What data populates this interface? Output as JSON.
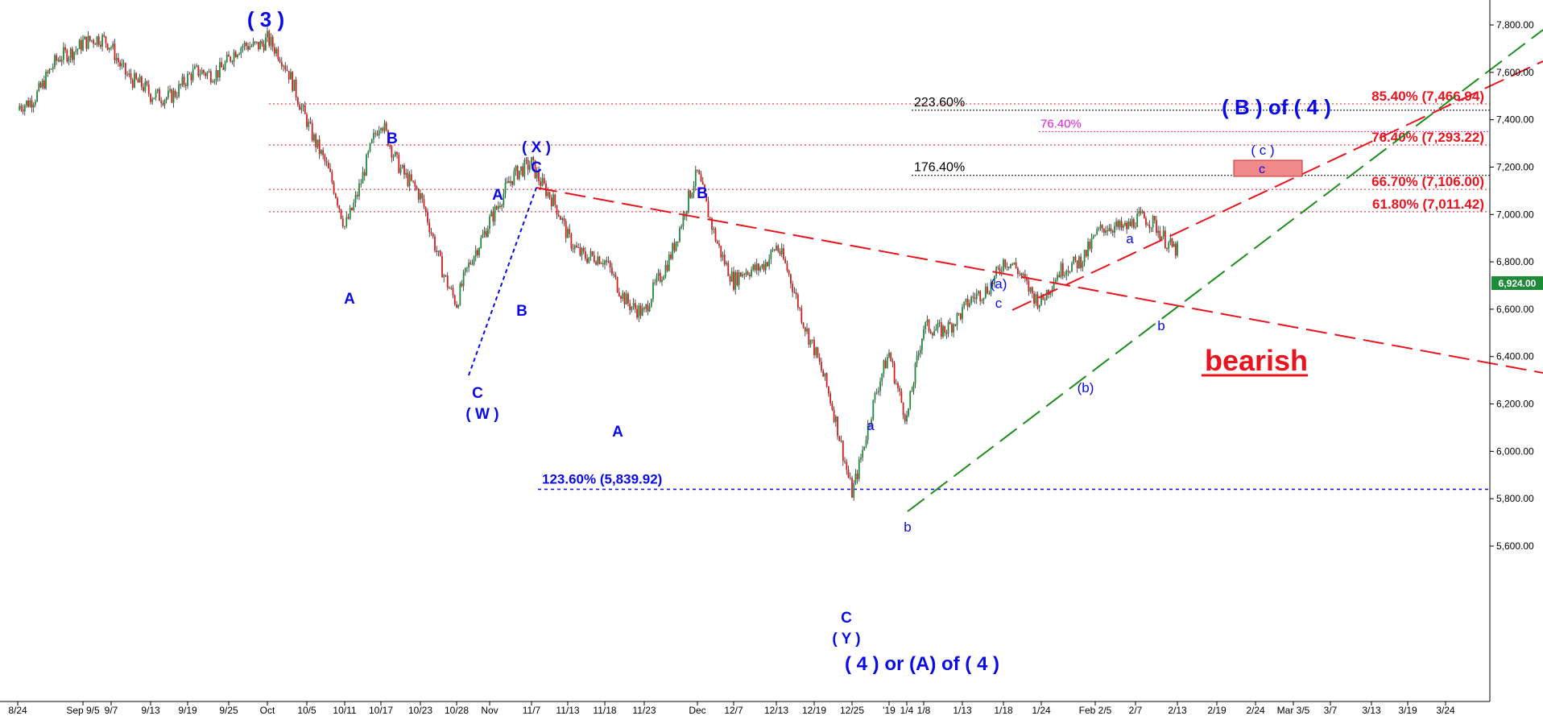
{
  "chart_data": {
    "type": "candlestick",
    "price_axis": {
      "ticks": [
        "7,800.00",
        "7,600.00",
        "7,400.00",
        "7,200.00",
        "7,000.00",
        "6,800.00",
        "6,600.00",
        "6,400.00",
        "6,200.00",
        "6,000.00",
        "5,800.00",
        "5,600.00"
      ],
      "ylim": [
        5560,
        7870
      ]
    },
    "date_axis": {
      "ticks": [
        "8/24",
        "Sep 9/5",
        "9/7",
        "9/13",
        "9/19",
        "9/25",
        "Oct",
        "10/5",
        "10/11",
        "10/17",
        "10/23",
        "10/28",
        "Nov",
        "11/7",
        "11/13",
        "11/18",
        "11/23",
        "Dec",
        "12/7",
        "12/13",
        "12/19",
        "12/25",
        "'19",
        "1/4",
        "1/8",
        "1/13",
        "1/18",
        "1/24",
        "Feb 2/5",
        "2/7",
        "2/13",
        "2/19",
        "2/24",
        "Mar 3/5",
        "3/7",
        "3/13",
        "3/19",
        "3/24"
      ]
    },
    "last_price": "6,924.00",
    "swing_path": [
      [
        "8/24",
        7440
      ],
      [
        "Sep 9/5",
        7750
      ],
      [
        "9/7",
        7700
      ],
      [
        "9/13",
        7480
      ],
      [
        "9/19",
        7560
      ],
      [
        "9/25",
        7650
      ],
      [
        "Oct",
        7760
      ],
      [
        "10/5",
        7420
      ],
      [
        "10/11",
        6960
      ],
      [
        "10/17",
        7380
      ],
      [
        "10/23",
        7050
      ],
      [
        "10/28",
        6620
      ],
      [
        "Nov",
        7000
      ],
      [
        "11/7",
        7240
      ],
      [
        "11/13",
        6900
      ],
      [
        "11/18",
        6780
      ],
      [
        "11/23",
        6560
      ],
      [
        "Dec",
        7150
      ],
      [
        "12/7",
        6700
      ],
      [
        "12/13",
        6860
      ],
      [
        "12/19",
        6450
      ],
      [
        "12/25",
        5850
      ],
      [
        "'19",
        6420
      ],
      [
        "1/4",
        6150
      ],
      [
        "1/8",
        6500
      ],
      [
        "1/13",
        6570
      ],
      [
        "1/18",
        6800
      ],
      [
        "1/24",
        6650
      ],
      [
        "Feb 2/5",
        6900
      ],
      [
        "2/7",
        6990
      ],
      [
        "2/13",
        6870
      ]
    ],
    "fib_levels": [
      {
        "label": "85.40% (7,466.94)",
        "value": 7466.94
      },
      {
        "label": "76.40% (7,293.22)",
        "value": 7293.22
      },
      {
        "label": "66.70% (7,106.00)",
        "value": 7106.0
      },
      {
        "label": "61.80% (7,011.42)",
        "value": 7011.42
      }
    ],
    "fib_extensions": [
      {
        "label": "223.60%",
        "value": 7440
      },
      {
        "label": "176.40%",
        "value": 7165
      }
    ],
    "fib_retracement_76": {
      "label": "76.40%",
      "value": 7350
    },
    "support_level": {
      "label": "123.60% (5,839.92)",
      "value": 5839.92
    },
    "wave_labels": {
      "w3": "( 3 )",
      "b1": "B",
      "a1": "A",
      "x_top": "( X )",
      "c_top": "C",
      "a_up": "A",
      "b_low": "B",
      "c_low": "C",
      "w_low": "( W )",
      "b_dec": "B",
      "a_nov": "A",
      "c_dec": "C",
      "y_low": "( Y )",
      "four": "( 4 ) or (A) of ( 4 )",
      "a_small": "a",
      "b_small": "b",
      "a_paren": "(a)",
      "c_small": "c",
      "b_paren": "(b)",
      "a_feb": "a",
      "b_feb": "b",
      "b_of_4": "( B ) of ( 4 )",
      "c_paren": "( c )",
      "c_box": "c"
    },
    "outlook": "bearish"
  }
}
